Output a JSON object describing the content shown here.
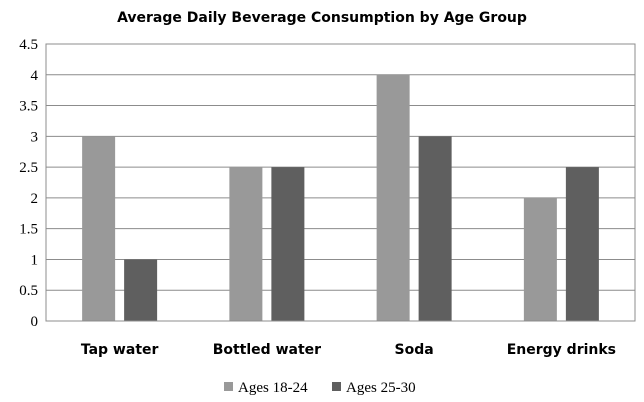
{
  "chart_data": {
    "type": "bar",
    "title": "Average Daily Beverage Consumption by Age Group",
    "xlabel": "",
    "ylabel": "",
    "categories": [
      "Tap water",
      "Bottled water",
      "Soda",
      "Energy drinks"
    ],
    "series": [
      {
        "name": "Ages 18-24",
        "values": [
          3,
          2.5,
          4,
          2
        ],
        "color": "#999999"
      },
      {
        "name": "Ages 25-30",
        "values": [
          1,
          2.5,
          3,
          2.5
        ],
        "color": "#5f5f5f"
      }
    ],
    "ylim": [
      0,
      4.5
    ],
    "yticks": [
      "0",
      "0.5",
      "1",
      "1.5",
      "2",
      "2.5",
      "3",
      "3.5",
      "4",
      "4.5"
    ],
    "grid": true,
    "legend_position": "bottom"
  }
}
